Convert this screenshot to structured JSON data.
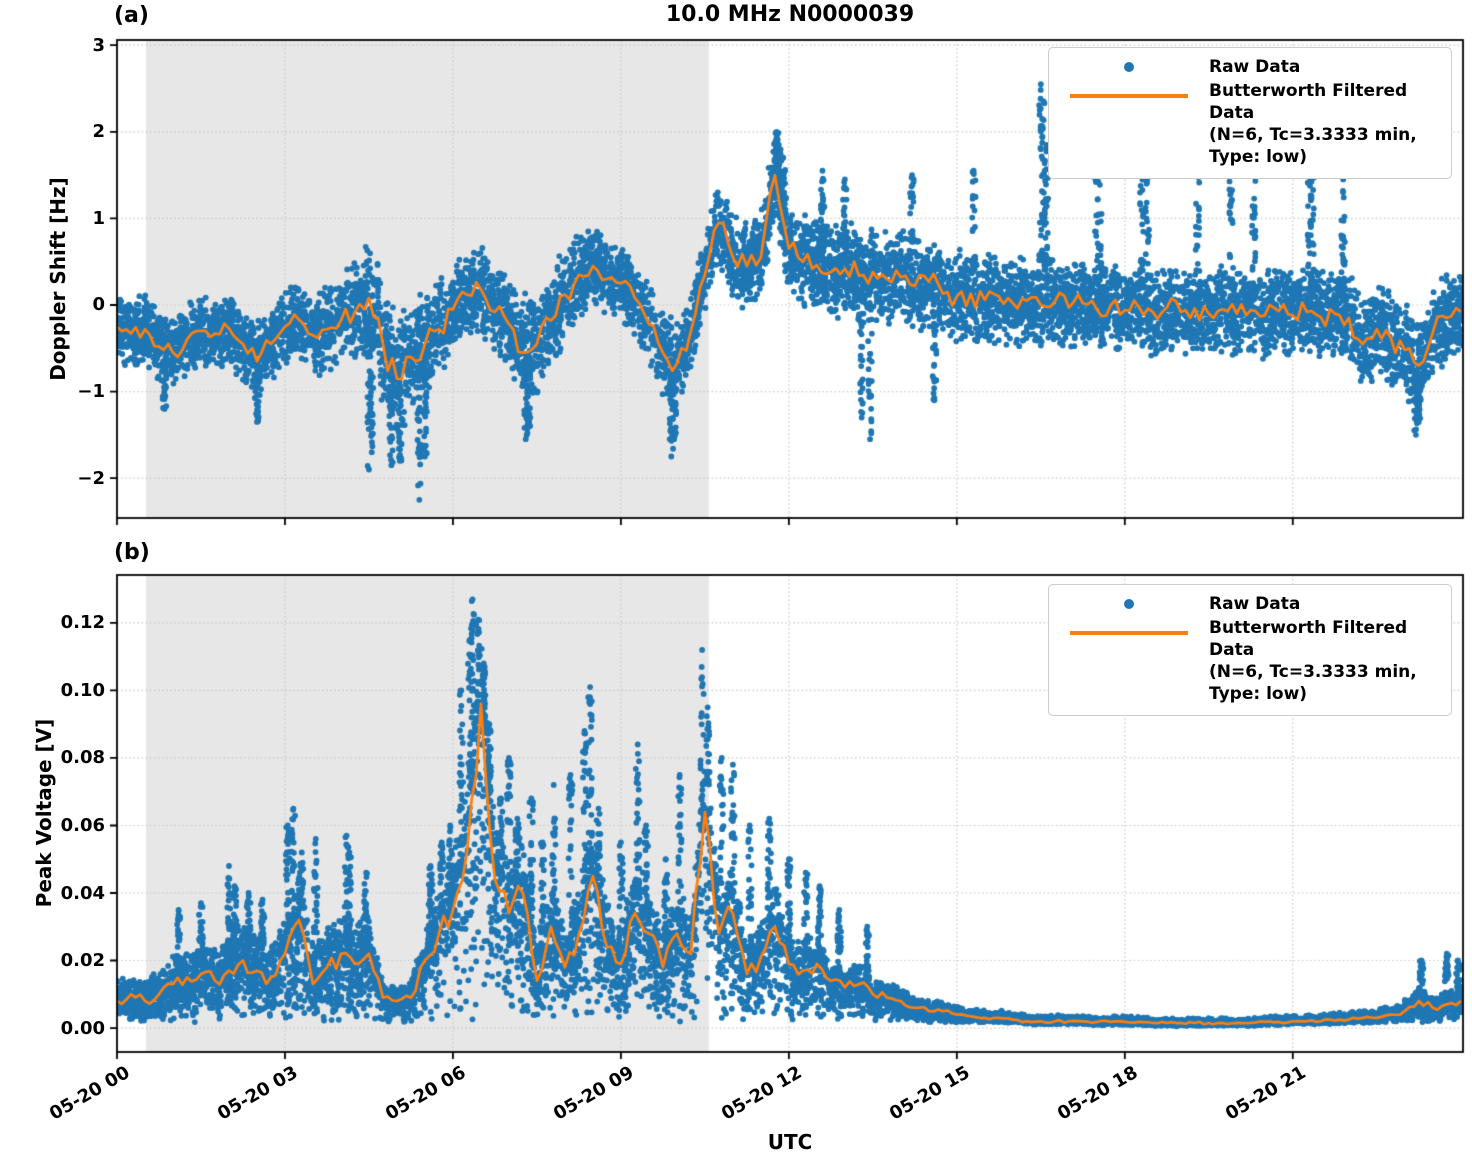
{
  "figure": {
    "title": "10.0 MHz N0000039",
    "xlabel": "UTC"
  },
  "legend": {
    "raw_label": "Raw Data",
    "filtered_label_line1": "Butterworth Filtered Data",
    "filtered_label_line2": "(N=6, Tc=3.3333 min, Type: low)"
  },
  "style": {
    "raw_color": "#1f77b4",
    "filtered_color": "#ff7f0e",
    "shade_color": "#e7e7e7",
    "grid_color": "#c8c8c8",
    "frame_color": "#000000"
  },
  "shaded_region": {
    "start_hour": 0.52,
    "end_hour": 10.57
  },
  "x_axis": {
    "lim_hours": [
      0,
      24.04
    ],
    "tick_hours": [
      0,
      3,
      6,
      9,
      12,
      15,
      18,
      21
    ],
    "tick_labels": [
      "05-20 00",
      "05-20 03",
      "05-20 06",
      "05-20 09",
      "05-20 12",
      "05-20 15",
      "05-20 18",
      "05-20 21"
    ]
  },
  "chart_data": [
    {
      "type": "scatter",
      "panel_label": "(a)",
      "ylabel": "Doppler Shift [Hz]",
      "series_names": [
        "Raw Data",
        "Butterworth Filtered Data (N=6, Tc=3.3333 min, Type: low)"
      ],
      "ylim": [
        -2.46,
        3.06
      ],
      "yticks": [
        3,
        2,
        1,
        0,
        -1,
        -2
      ],
      "ytick_labels": [
        "3",
        "2",
        "1",
        "0",
        "−1",
        "−2"
      ],
      "seed": 42,
      "n_points": 8800,
      "x_hours": [
        0,
        0.25,
        0.5,
        0.75,
        1,
        1.25,
        1.5,
        1.75,
        2,
        2.25,
        2.5,
        2.75,
        3,
        3.25,
        3.5,
        3.75,
        4,
        4.25,
        4.5,
        4.75,
        5,
        5.25,
        5.5,
        5.75,
        6,
        6.25,
        6.5,
        6.75,
        7,
        7.25,
        7.5,
        7.75,
        8,
        8.25,
        8.5,
        8.75,
        9,
        9.25,
        9.5,
        9.75,
        10,
        10.25,
        10.5,
        10.75,
        11,
        11.25,
        11.5,
        11.75,
        12,
        12.25,
        12.5,
        12.75,
        13,
        13.25,
        13.5,
        13.75,
        14,
        14.25,
        14.5,
        14.75,
        15,
        15.25,
        15.5,
        15.75,
        16,
        16.25,
        16.5,
        16.75,
        17,
        17.25,
        17.5,
        17.75,
        18,
        18.25,
        18.5,
        18.75,
        19,
        19.25,
        19.5,
        19.75,
        20,
        20.25,
        20.5,
        20.75,
        21,
        21.25,
        21.5,
        21.75,
        22,
        22.25,
        22.5,
        22.75,
        23,
        23.25,
        23.5,
        23.75,
        24
      ],
      "filtered": [
        -0.25,
        -0.33,
        -0.28,
        -0.48,
        -0.55,
        -0.4,
        -0.3,
        -0.33,
        -0.27,
        -0.45,
        -0.65,
        -0.45,
        -0.25,
        -0.17,
        -0.35,
        -0.28,
        -0.18,
        -0.08,
        0.08,
        -0.45,
        -0.85,
        -0.6,
        -0.45,
        -0.28,
        -0.05,
        0.12,
        0.18,
        -0.08,
        -0.22,
        -0.55,
        -0.45,
        -0.18,
        0.12,
        0.35,
        0.45,
        0.3,
        0.25,
        0.08,
        -0.22,
        -0.55,
        -0.68,
        -0.3,
        0.35,
        0.95,
        0.55,
        0.45,
        0.55,
        1.5,
        0.65,
        0.5,
        0.46,
        0.38,
        0.42,
        0.34,
        0.38,
        0.3,
        0.32,
        0.22,
        0.27,
        0.13,
        0.1,
        0.13,
        0.06,
        0.1,
        0.02,
        0.05,
        0,
        0.04,
        -0.03,
        0.02,
        -0.05,
        0,
        -0.06,
        -0.02,
        -0.08,
        -0.03,
        -0.08,
        -0.04,
        -0.1,
        -0.05,
        -0.1,
        -0.06,
        -0.12,
        -0.07,
        -0.12,
        -0.08,
        -0.14,
        -0.1,
        -0.15,
        -0.45,
        -0.28,
        -0.38,
        -0.52,
        -0.7,
        -0.32,
        -0.15,
        -0.08
      ],
      "raw_spread": [
        0.4,
        0.4,
        0.4,
        0.42,
        0.42,
        0.42,
        0.4,
        0.4,
        0.42,
        0.45,
        0.5,
        0.45,
        0.45,
        0.45,
        0.48,
        0.5,
        0.52,
        0.6,
        0.7,
        0.75,
        0.75,
        0.7,
        0.65,
        0.55,
        0.5,
        0.5,
        0.5,
        0.5,
        0.55,
        0.65,
        0.65,
        0.6,
        0.55,
        0.5,
        0.45,
        0.45,
        0.45,
        0.45,
        0.5,
        0.5,
        0.5,
        0.45,
        0.45,
        0.5,
        0.5,
        0.5,
        0.5,
        0.5,
        0.55,
        0.55,
        0.55,
        0.55,
        0.55,
        0.55,
        0.55,
        0.55,
        0.55,
        0.55,
        0.55,
        0.55,
        0.55,
        0.55,
        0.55,
        0.55,
        0.52,
        0.52,
        0.52,
        0.52,
        0.5,
        0.5,
        0.5,
        0.5,
        0.5,
        0.5,
        0.5,
        0.5,
        0.5,
        0.5,
        0.5,
        0.5,
        0.5,
        0.5,
        0.5,
        0.5,
        0.5,
        0.5,
        0.5,
        0.5,
        0.52,
        0.55,
        0.55,
        0.55,
        0.55,
        0.55,
        0.55,
        0.5,
        0.45
      ],
      "raw_outliers": [
        [
          0.85,
          -1.2
        ],
        [
          2.5,
          -1.35
        ],
        [
          4.5,
          -1.9
        ],
        [
          4.55,
          -1.7
        ],
        [
          4.9,
          -1.85
        ],
        [
          5.05,
          -1.8
        ],
        [
          5.4,
          -2.25
        ],
        [
          5.5,
          -1.75
        ],
        [
          7.3,
          -1.55
        ],
        [
          7.35,
          -1.4
        ],
        [
          9.9,
          -1.75
        ],
        [
          9.95,
          -1.55
        ],
        [
          11.78,
          2.0
        ],
        [
          11.82,
          1.85
        ],
        [
          11.9,
          1.7
        ],
        [
          12.6,
          1.55
        ],
        [
          13.0,
          1.45
        ],
        [
          13.3,
          -1.3
        ],
        [
          13.45,
          -1.55
        ],
        [
          14.2,
          1.5
        ],
        [
          14.6,
          -1.1
        ],
        [
          15.3,
          1.55
        ],
        [
          16.5,
          2.55
        ],
        [
          16.55,
          2.35
        ],
        [
          16.6,
          1.85
        ],
        [
          17.5,
          2.3
        ],
        [
          17.55,
          2.1
        ],
        [
          18.3,
          1.8
        ],
        [
          18.4,
          1.75
        ],
        [
          19.3,
          1.9
        ],
        [
          19.9,
          1.75
        ],
        [
          20.3,
          1.55
        ],
        [
          21.3,
          1.78
        ],
        [
          21.35,
          1.6
        ],
        [
          21.9,
          1.45
        ],
        [
          23.2,
          -1.5
        ],
        [
          23.25,
          -1.35
        ]
      ]
    },
    {
      "type": "scatter",
      "panel_label": "(b)",
      "ylabel": "Peak Voltage [V]",
      "series_names": [
        "Raw Data",
        "Butterworth Filtered Data (N=6, Tc=3.3333 min, Type: low)"
      ],
      "ylim": [
        -0.0071,
        0.1342
      ],
      "yticks": [
        0.12,
        0.1,
        0.08,
        0.06,
        0.04,
        0.02,
        0
      ],
      "ytick_labels": [
        "0.12",
        "0.10",
        "0.08",
        "0.06",
        "0.04",
        "0.02",
        "0.00"
      ],
      "seed": 1337,
      "n_points": 8800,
      "x_hours": [
        0,
        0.25,
        0.5,
        0.75,
        1,
        1.25,
        1.5,
        1.75,
        2,
        2.25,
        2.5,
        2.75,
        3,
        3.25,
        3.5,
        3.75,
        4,
        4.25,
        4.5,
        4.75,
        5,
        5.25,
        5.5,
        5.75,
        6,
        6.25,
        6.5,
        6.75,
        7,
        7.25,
        7.5,
        7.75,
        8,
        8.25,
        8.5,
        8.75,
        9,
        9.25,
        9.5,
        9.75,
        10,
        10.25,
        10.5,
        10.75,
        11,
        11.25,
        11.5,
        11.75,
        12,
        12.25,
        12.5,
        12.75,
        13,
        13.25,
        13.5,
        13.75,
        14,
        14.25,
        14.5,
        14.75,
        15,
        15.25,
        15.5,
        15.75,
        16,
        16.25,
        16.5,
        16.75,
        17,
        17.25,
        17.5,
        17.75,
        18,
        18.25,
        18.5,
        18.75,
        19,
        19.25,
        19.5,
        19.75,
        20,
        20.25,
        20.5,
        20.75,
        21,
        21.25,
        21.5,
        21.75,
        22,
        22.25,
        22.5,
        22.75,
        23,
        23.25,
        23.5,
        23.75,
        24
      ],
      "filtered": [
        0.008,
        0.01,
        0.008,
        0.01,
        0.013,
        0.015,
        0.016,
        0.014,
        0.017,
        0.02,
        0.017,
        0.015,
        0.022,
        0.032,
        0.013,
        0.018,
        0.022,
        0.019,
        0.022,
        0.009,
        0.008,
        0.009,
        0.02,
        0.028,
        0.035,
        0.052,
        0.096,
        0.044,
        0.034,
        0.04,
        0.014,
        0.03,
        0.018,
        0.028,
        0.045,
        0.024,
        0.019,
        0.034,
        0.028,
        0.018,
        0.028,
        0.022,
        0.064,
        0.028,
        0.034,
        0.016,
        0.021,
        0.03,
        0.019,
        0.017,
        0.019,
        0.014,
        0.012,
        0.013,
        0.01,
        0.009,
        0.008,
        0.006,
        0.005,
        0.005,
        0.004,
        0.0035,
        0.003,
        0.003,
        0.0025,
        0.002,
        0.002,
        0.002,
        0.002,
        0.002,
        0.0018,
        0.0018,
        0.0018,
        0.0018,
        0.0015,
        0.0015,
        0.0015,
        0.0015,
        0.0015,
        0.0015,
        0.0015,
        0.0015,
        0.0018,
        0.0018,
        0.002,
        0.002,
        0.002,
        0.0022,
        0.0025,
        0.003,
        0.003,
        0.004,
        0.005,
        0.008,
        0.006,
        0.007,
        0.008
      ],
      "raw_spread": [
        0.005,
        0.005,
        0.005,
        0.006,
        0.007,
        0.008,
        0.008,
        0.008,
        0.009,
        0.01,
        0.009,
        0.008,
        0.01,
        0.012,
        0.01,
        0.01,
        0.011,
        0.01,
        0.01,
        0.004,
        0.003,
        0.004,
        0.01,
        0.012,
        0.015,
        0.02,
        0.022,
        0.018,
        0.015,
        0.016,
        0.01,
        0.013,
        0.01,
        0.013,
        0.016,
        0.012,
        0.01,
        0.014,
        0.012,
        0.01,
        0.012,
        0.01,
        0.02,
        0.012,
        0.013,
        0.008,
        0.009,
        0.011,
        0.008,
        0.007,
        0.007,
        0.006,
        0.005,
        0.005,
        0.004,
        0.004,
        0.0035,
        0.003,
        0.0025,
        0.0025,
        0.002,
        0.002,
        0.002,
        0.002,
        0.0018,
        0.0015,
        0.0015,
        0.0015,
        0.0015,
        0.0015,
        0.0015,
        0.0015,
        0.0015,
        0.0015,
        0.0012,
        0.0012,
        0.0012,
        0.0012,
        0.0012,
        0.0012,
        0.0012,
        0.0012,
        0.0015,
        0.0015,
        0.0015,
        0.0015,
        0.0018,
        0.0018,
        0.002,
        0.002,
        0.002,
        0.0025,
        0.003,
        0.004,
        0.003,
        0.0035,
        0.004
      ],
      "raw_outliers": [
        [
          1.1,
          0.035
        ],
        [
          1.5,
          0.037
        ],
        [
          2.0,
          0.048
        ],
        [
          2.1,
          0.042
        ],
        [
          2.35,
          0.04
        ],
        [
          2.6,
          0.038
        ],
        [
          3.05,
          0.06
        ],
        [
          3.15,
          0.065
        ],
        [
          3.3,
          0.052
        ],
        [
          3.55,
          0.056
        ],
        [
          4.1,
          0.057
        ],
        [
          4.15,
          0.052
        ],
        [
          4.45,
          0.046
        ],
        [
          5.6,
          0.048
        ],
        [
          5.8,
          0.055
        ],
        [
          5.95,
          0.06
        ],
        [
          6.15,
          0.1
        ],
        [
          6.3,
          0.115
        ],
        [
          6.35,
          0.127
        ],
        [
          6.45,
          0.121
        ],
        [
          6.55,
          0.108
        ],
        [
          6.65,
          0.09
        ],
        [
          6.85,
          0.068
        ],
        [
          7.0,
          0.08
        ],
        [
          7.15,
          0.062
        ],
        [
          7.4,
          0.068
        ],
        [
          7.6,
          0.055
        ],
        [
          7.8,
          0.072
        ],
        [
          8.1,
          0.075
        ],
        [
          8.35,
          0.088
        ],
        [
          8.45,
          0.101
        ],
        [
          8.6,
          0.065
        ],
        [
          9.0,
          0.055
        ],
        [
          9.3,
          0.084
        ],
        [
          9.45,
          0.06
        ],
        [
          9.8,
          0.05
        ],
        [
          10.05,
          0.075
        ],
        [
          10.45,
          0.112
        ],
        [
          10.55,
          0.095
        ],
        [
          10.8,
          0.08
        ],
        [
          11.0,
          0.078
        ],
        [
          11.3,
          0.06
        ],
        [
          11.65,
          0.062
        ],
        [
          12.0,
          0.05
        ],
        [
          12.3,
          0.046
        ],
        [
          12.55,
          0.042
        ],
        [
          12.9,
          0.035
        ],
        [
          13.4,
          0.03
        ],
        [
          23.3,
          0.02
        ],
        [
          23.75,
          0.022
        ],
        [
          23.95,
          0.02
        ]
      ]
    }
  ]
}
